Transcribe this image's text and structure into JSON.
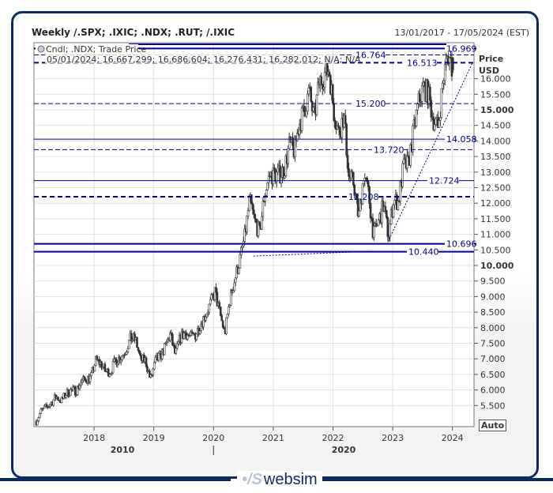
{
  "header": {
    "title": "Weekly /.SPX; .IXIC; .NDX; .RUT; /.IXIC",
    "date_range": "13/01/2017 - 17/05/2024 (EST)"
  },
  "legend": {
    "series_label": "Cndl; .NDX; Trade Price",
    "ohlc_text": "05/01/2024; 16.667,299; 16.686,604; 16.276,431; 16.282,012; N/A; N/A"
  },
  "axis": {
    "y_title": "Price",
    "y_unit": "USD",
    "auto_label": "Auto",
    "era_labels": [
      "2010",
      "2020"
    ]
  },
  "footer": {
    "brand": "websim"
  },
  "colors": {
    "line": "#00008b",
    "candle": "#333333",
    "grid": "#e0e0e0",
    "frame": "#0d2a5c"
  },
  "chart_data": {
    "type": "candlestick",
    "title": "Weekly /.SPX; .IXIC; .NDX; .RUT; /.IXIC",
    "ylabel": "Price USD",
    "ylim": [
      5000,
      17000
    ],
    "xlim": [
      "2017-01-13",
      "2024-05-17"
    ],
    "grid": true,
    "x_ticks": [
      "2018",
      "2019",
      "2020",
      "2021",
      "2022",
      "2023",
      "2024"
    ],
    "y_ticks": [
      "5.500",
      "6.000",
      "6.500",
      "7.000",
      "7.500",
      "8.000",
      "8.500",
      "9.000",
      "9.500",
      "10.000",
      "10.500",
      "11.000",
      "11.500",
      "12.000",
      "12.500",
      "13.000",
      "13.500",
      "14.000",
      "14.500",
      "15.000",
      "15.500",
      "16.000"
    ],
    "y_tick_values": [
      5500,
      6000,
      6500,
      7000,
      7500,
      8000,
      8500,
      9000,
      9500,
      10000,
      10500,
      11000,
      11500,
      12000,
      12500,
      13000,
      13500,
      14000,
      14500,
      15000,
      15500,
      16000
    ],
    "monthly_close_approx": {
      "start": "2017-01",
      "values": [
        5000,
        5330,
        5436,
        5585,
        5788,
        5647,
        5880,
        5988,
        5979,
        6248,
        6367,
        6396,
        6949,
        6854,
        6581,
        6605,
        6967,
        7040,
        7272,
        7657,
        7627,
        6967,
        6949,
        6330,
        6906,
        7094,
        7378,
        7781,
        7127,
        7671,
        7848,
        7692,
        7749,
        8084,
        8403,
        8733,
        9150,
        8462,
        7813,
        8890,
        9555,
        10156,
        10905,
        12110,
        11418,
        11052,
        12268,
        12888,
        12925,
        12909,
        13091,
        13860,
        13687,
        14554,
        14959,
        15582,
        14689,
        15850,
        16135,
        16320,
        14930,
        14237,
        14838,
        12855,
        12643,
        11504,
        12947,
        12272,
        10971,
        11405,
        11951,
        10940,
        12101,
        12042,
        13181,
        13246,
        14254,
        15179,
        15757,
        15501,
        14715,
        14409,
        15947,
        16826,
        16282
      ]
    },
    "last_bar": {
      "date": "05/01/2024",
      "open": 16667.299,
      "high": 16686.604,
      "low": 16276.431,
      "close": 16282.012
    },
    "horizontal_lines": [
      {
        "value": 16969,
        "label": "16.969",
        "style": "solid-thick"
      },
      {
        "value": 16764,
        "label": "16.764",
        "style": "dashed"
      },
      {
        "value": 16513,
        "label": "16.513",
        "style": "dashed-thick"
      },
      {
        "value": 15200,
        "label": "15.200",
        "style": "dashed"
      },
      {
        "value": 14058,
        "label": "14.058",
        "style": "solid"
      },
      {
        "value": 13720,
        "label": "13.720",
        "style": "dashed"
      },
      {
        "value": 12724,
        "label": "12.724",
        "style": "solid"
      },
      {
        "value": 12208,
        "label": "12.208",
        "style": "dashed-thick"
      },
      {
        "value": 10696,
        "label": "10.696",
        "style": "solid-thick"
      },
      {
        "value": 10440,
        "label": "10.440",
        "style": "solid-thick"
      }
    ],
    "trend_lines": [
      {
        "from": [
          "2020-09",
          10300
        ],
        "to": [
          "2022-09",
          10460
        ]
      },
      {
        "from": [
          "2022-12",
          10750
        ],
        "to": [
          "2024-05",
          16500
        ]
      }
    ]
  }
}
